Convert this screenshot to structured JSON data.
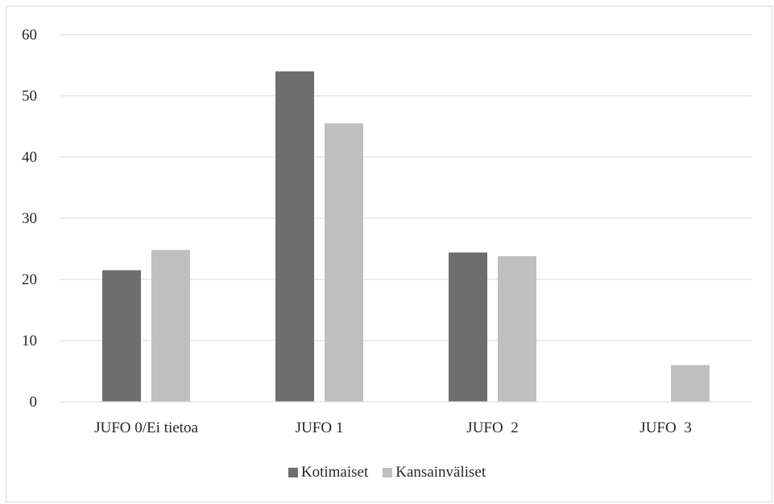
{
  "chart_data": {
    "type": "bar",
    "categories": [
      "JUFO 0/Ei tietoa",
      "JUFO 1",
      "JUFO  2",
      "JUFO  3"
    ],
    "series": [
      {
        "name": "Kotimaiset",
        "values": [
          21.5,
          54.0,
          24.4,
          0
        ],
        "color": "#6e6e6e"
      },
      {
        "name": "Kansainväliset",
        "values": [
          24.8,
          45.5,
          23.8,
          6.0
        ],
        "color": "#bfbfbf"
      }
    ],
    "y_ticks": [
      "0",
      "10",
      "20",
      "30",
      "40",
      "50",
      "60"
    ],
    "ylim": [
      0,
      60
    ],
    "grid": true,
    "legend_position": "bottom"
  }
}
